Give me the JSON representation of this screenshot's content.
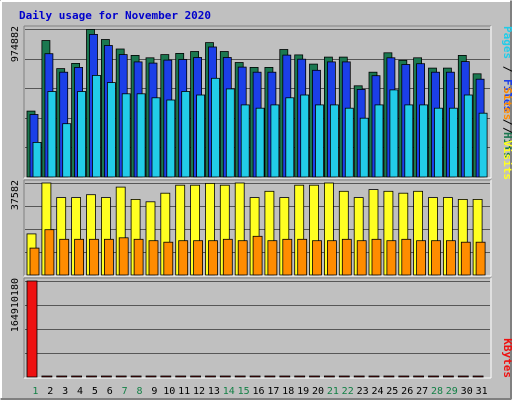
{
  "chart_data": {
    "type": "bar",
    "title": "Daily usage for November 2020",
    "x": [
      "1",
      "2",
      "3",
      "4",
      "5",
      "6",
      "7",
      "8",
      "9",
      "10",
      "11",
      "12",
      "13",
      "14",
      "15",
      "16",
      "17",
      "18",
      "19",
      "20",
      "21",
      "22",
      "23",
      "24",
      "25",
      "26",
      "27",
      "28",
      "29",
      "30",
      "31"
    ],
    "weekend_days": [
      "1",
      "7",
      "8",
      "14",
      "15",
      "21",
      "22",
      "28",
      "29"
    ],
    "colors": {
      "hits": "#1b7850",
      "files": "#1b3fe8",
      "pages": "#22cce8",
      "visits": "#ffff22",
      "sites": "#ff8c00",
      "kbytes": "#ee1111",
      "title": "#0000cc",
      "weekend_label": "#138046",
      "weekday_label": "#000000",
      "panel_bg": "#c0c0c0"
    },
    "panels": [
      {
        "max_label": "974882",
        "ylim": [
          0,
          974882
        ],
        "legend": [
          {
            "text": "Hits",
            "color": "#1b7850"
          },
          {
            "text": "Files",
            "color": "#1b3fe8"
          },
          {
            "text": "Pages",
            "color": "#22cce8"
          }
        ],
        "series": [
          {
            "name": "Hits",
            "values": [
              434000,
              899000,
              714000,
              748000,
              972000,
              906000,
              843000,
              801000,
              785000,
              806000,
              814000,
              827000,
              885000,
              827000,
              754000,
              722000,
              722000,
              840000,
              804000,
              744000,
              790000,
              790000,
              601000,
              690000,
              818000,
              769000,
              785000,
              717000,
              717000,
              801000,
              680000
            ]
          },
          {
            "name": "Files",
            "values": [
              412000,
              812000,
              690000,
              722000,
              939000,
              866000,
              806000,
              758000,
              750000,
              770000,
              774000,
              787000,
              856000,
              787000,
              724000,
              690000,
              690000,
              803000,
              776000,
              703000,
              758000,
              758000,
              577000,
              667000,
              785000,
              741000,
              746000,
              690000,
              690000,
              760000,
              644000
            ]
          },
          {
            "name": "Pages",
            "values": [
              228000,
              563000,
              351000,
              563000,
              669000,
              622000,
              548000,
              548000,
              522000,
              507000,
              563000,
              540000,
              650000,
              580000,
              475000,
              453000,
              475000,
              522000,
              540000,
              475000,
              475000,
              453000,
              387000,
              475000,
              574000,
              475000,
              475000,
              453000,
              453000,
              540000,
              420000
            ]
          }
        ]
      },
      {
        "max_label": "37582",
        "ylim": [
          0,
          37582
        ],
        "legend": [
          {
            "text": "Sites",
            "color": "#ff8c00"
          },
          {
            "text": "Visits",
            "color": "#ffff22"
          }
        ],
        "series": [
          {
            "name": "Visits",
            "values": [
              16800,
              37582,
              31600,
              31600,
              32800,
              31600,
              35900,
              30900,
              29900,
              33400,
              36700,
              36700,
              37400,
              36700,
              37582,
              31600,
              34200,
              31600,
              36700,
              36700,
              37582,
              34200,
              31600,
              34900,
              34200,
              33400,
              34200,
              31600,
              31600,
              30900,
              30900
            ]
          },
          {
            "name": "Sites",
            "values": [
              11000,
              18500,
              14600,
              14600,
              14600,
              14600,
              15200,
              14600,
              14000,
              13400,
              14000,
              14000,
              14000,
              14600,
              14000,
              15800,
              14000,
              14600,
              14600,
              14000,
              14000,
              14600,
              14000,
              14600,
              14000,
              14600,
              14000,
              14000,
              14000,
              13400,
              13400
            ]
          }
        ]
      },
      {
        "max_label": "164910180",
        "ylim": [
          0,
          164910180
        ],
        "legend": [
          {
            "text": "KBytes",
            "color": "#ee1111"
          }
        ],
        "series": [
          {
            "name": "KBytes",
            "values": [
              164910180,
              35500,
              15900,
              15900,
              51700,
              20100,
              15900,
              15900,
              20100,
              20100,
              14200,
              14200,
              35500,
              14200,
              22700,
              43400,
              43400,
              27900,
              20100,
              20100,
              47700,
              15900,
              24400,
              51700,
              55100,
              27900,
              15900,
              32800,
              20100,
              15900,
              15900
            ]
          }
        ]
      }
    ]
  }
}
